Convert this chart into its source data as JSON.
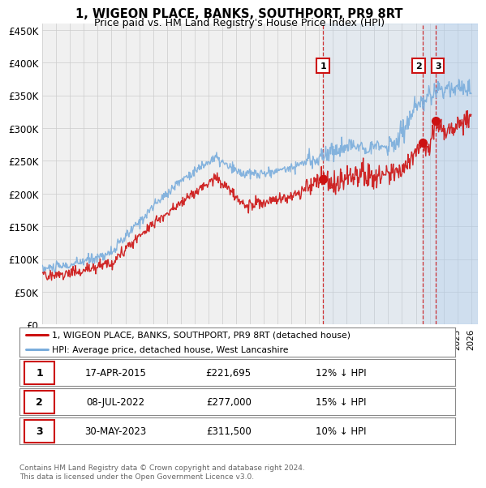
{
  "title": "1, WIGEON PLACE, BANKS, SOUTHPORT, PR9 8RT",
  "subtitle": "Price paid vs. HM Land Registry's House Price Index (HPI)",
  "ylabel_ticks": [
    "£0",
    "£50K",
    "£100K",
    "£150K",
    "£200K",
    "£250K",
    "£300K",
    "£350K",
    "£400K",
    "£450K"
  ],
  "ytick_values": [
    0,
    50000,
    100000,
    150000,
    200000,
    250000,
    300000,
    350000,
    400000,
    450000
  ],
  "ylim": [
    0,
    460000
  ],
  "xlim_start": 1995.0,
  "xlim_end": 2026.5,
  "sale_dates": [
    2015.29,
    2022.52,
    2023.41
  ],
  "sale_prices": [
    221695,
    277000,
    311500
  ],
  "sale_labels": [
    "1",
    "2",
    "3"
  ],
  "vline_dates": [
    2015.29,
    2022.52,
    2023.41
  ],
  "hpi_color": "#7aaddc",
  "price_color": "#cc1111",
  "vline_color": "#cc1111",
  "grid_color": "#cccccc",
  "shade_color": "#ddeeff",
  "legend_label_price": "1, WIGEON PLACE, BANKS, SOUTHPORT, PR9 8RT (detached house)",
  "legend_label_hpi": "HPI: Average price, detached house, West Lancashire",
  "table_rows": [
    {
      "label": "1",
      "date": "17-APR-2015",
      "price": "£221,695",
      "pct": "12% ↓ HPI"
    },
    {
      "label": "2",
      "date": "08-JUL-2022",
      "price": "£277,000",
      "pct": "15% ↓ HPI"
    },
    {
      "label": "3",
      "date": "30-MAY-2023",
      "price": "£311,500",
      "pct": "10% ↓ HPI"
    }
  ],
  "footer": "Contains HM Land Registry data © Crown copyright and database right 2024.\nThis data is licensed under the Open Government Licence v3.0.",
  "background_color": "#ffffff",
  "plot_bg_color": "#f0f0f0"
}
